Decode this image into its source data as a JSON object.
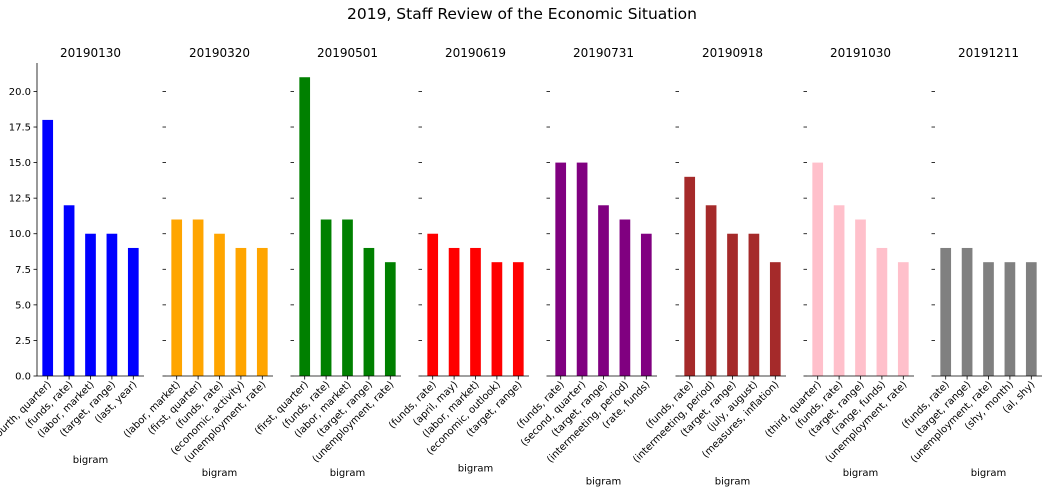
{
  "suptitle": "2019, Staff Review of the Economic Situation",
  "chart_data": [
    {
      "type": "bar",
      "title": "20190130",
      "xlabel": "bigram",
      "ylabel": "",
      "color": "#0000ff",
      "categories": [
        "(fourth, quarter)",
        "(funds, rate)",
        "(labor, market)",
        "(target, range)",
        "(last, year)"
      ],
      "values": [
        18,
        12,
        10,
        10,
        9
      ],
      "ylim": [
        0,
        22
      ],
      "yticks": [
        "0.0",
        "2.5",
        "5.0",
        "7.5",
        "10.0",
        "12.5",
        "15.0",
        "17.5",
        "20.0"
      ]
    },
    {
      "type": "bar",
      "title": "20190320",
      "xlabel": "bigram",
      "ylabel": "",
      "color": "#ffa500",
      "categories": [
        "(labor, market)",
        "(first, quarter)",
        "(funds, rate)",
        "(economic, activity)",
        "(unemployment, rate)"
      ],
      "values": [
        11,
        11,
        10,
        9,
        9
      ],
      "ylim": [
        0,
        22
      ]
    },
    {
      "type": "bar",
      "title": "20190501",
      "xlabel": "bigram",
      "ylabel": "",
      "color": "#008000",
      "categories": [
        "(first, quarter)",
        "(funds, rate)",
        "(labor, market)",
        "(target, range)",
        "(unemployment, rate)"
      ],
      "values": [
        21,
        11,
        11,
        9,
        8
      ],
      "ylim": [
        0,
        22
      ]
    },
    {
      "type": "bar",
      "title": "20190619",
      "xlabel": "bigram",
      "ylabel": "",
      "color": "#ff0000",
      "categories": [
        "(funds, rate)",
        "(april, may)",
        "(labor, market)",
        "(economic, outlook)",
        "(target, range)"
      ],
      "values": [
        10,
        9,
        9,
        8,
        8
      ],
      "ylim": [
        0,
        22
      ]
    },
    {
      "type": "bar",
      "title": "20190731",
      "xlabel": "bigram",
      "ylabel": "",
      "color": "#800080",
      "categories": [
        "(funds, rate)",
        "(second, quarter)",
        "(target, range)",
        "(intermeeting, period)",
        "(rate, funds)"
      ],
      "values": [
        15,
        15,
        12,
        11,
        10
      ],
      "ylim": [
        0,
        22
      ]
    },
    {
      "type": "bar",
      "title": "20190918",
      "xlabel": "bigram",
      "ylabel": "",
      "color": "#a52a2a",
      "categories": [
        "(funds, rate)",
        "(intermeeting, period)",
        "(target, range)",
        "(july, august)",
        "(measures, inflation)"
      ],
      "values": [
        14,
        12,
        10,
        10,
        8
      ],
      "ylim": [
        0,
        22
      ]
    },
    {
      "type": "bar",
      "title": "20191030",
      "xlabel": "bigram",
      "ylabel": "",
      "color": "#ffc0cb",
      "categories": [
        "(third, quarter)",
        "(funds, rate)",
        "(target, range)",
        "(range, funds)",
        "(unemployment, rate)"
      ],
      "values": [
        15,
        12,
        11,
        9,
        8
      ],
      "ylim": [
        0,
        22
      ]
    },
    {
      "type": "bar",
      "title": "20191211",
      "xlabel": "bigram",
      "ylabel": "",
      "color": "#808080",
      "categories": [
        "(funds, rate)",
        "(target, range)",
        "(unemployment, rate)",
        "(shy, month)",
        "(al, shy)"
      ],
      "values": [
        9,
        9,
        8,
        8,
        8
      ],
      "ylim": [
        0,
        22
      ]
    }
  ]
}
